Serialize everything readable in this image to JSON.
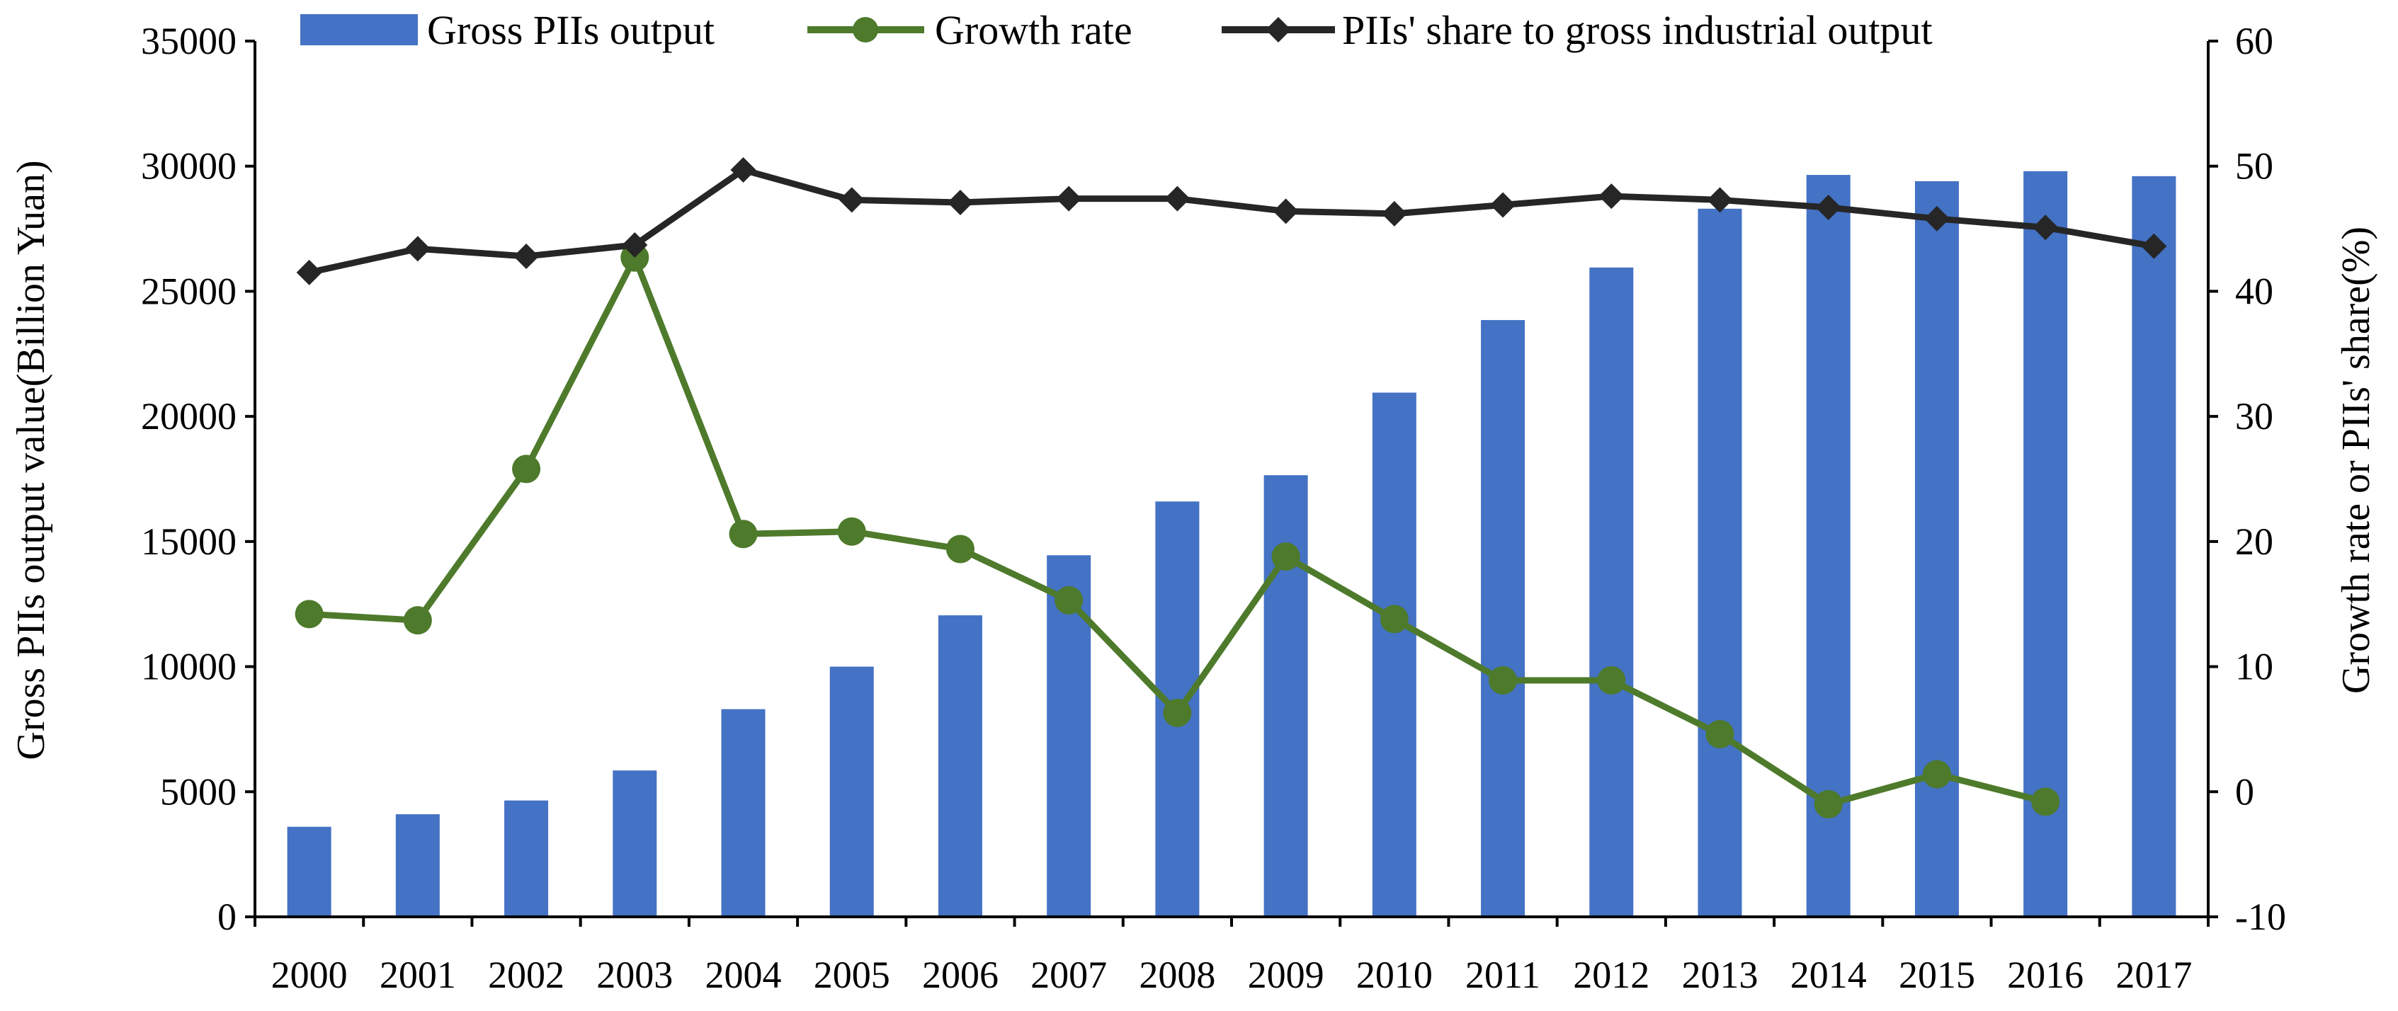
{
  "chart_data": {
    "type": "bar+line",
    "categories": [
      "2000",
      "2001",
      "2002",
      "2003",
      "2004",
      "2005",
      "2006",
      "2007",
      "2008",
      "2009",
      "2010",
      "2011",
      "2012",
      "2013",
      "2014",
      "2015",
      "2016",
      "2017"
    ],
    "left_axis": {
      "label": "Gross PIIs output value(Billion Yuan)",
      "min": 0,
      "max": 35000,
      "step": 5000,
      "ticks": [
        "0",
        "5000",
        "10000",
        "15000",
        "20000",
        "25000",
        "30000",
        "35000"
      ]
    },
    "right_axis": {
      "label": "Growth rate or  PIIs' share(%)",
      "min": -10,
      "max": 60,
      "step": 10,
      "ticks": [
        "-10",
        "0",
        "10",
        "20",
        "30",
        "40",
        "50",
        "60"
      ]
    },
    "series": [
      {
        "name": "Gross PIIs output",
        "kind": "bar",
        "axis": "left",
        "color": "#4472C4",
        "values": [
          3600,
          4100,
          4650,
          5850,
          8300,
          10000,
          12050,
          14450,
          16600,
          17650,
          20950,
          23850,
          25950,
          28300,
          29650,
          29400,
          29800,
          29600
        ]
      },
      {
        "name": "Growth rate",
        "kind": "line",
        "axis": "right",
        "color": "#4E7A2B",
        "marker": "circle",
        "values": [
          14.2,
          13.7,
          25.8,
          42.7,
          20.6,
          20.8,
          19.4,
          15.3,
          6.3,
          18.8,
          13.8,
          8.9,
          8.9,
          4.6,
          -1.0,
          1.4,
          -0.8,
          null
        ]
      },
      {
        "name": "PIIs' share to gross industrial output",
        "kind": "line",
        "axis": "right",
        "color": "#262626",
        "marker": "diamond",
        "values": [
          41.5,
          43.4,
          42.8,
          43.7,
          49.7,
          47.3,
          47.1,
          47.4,
          47.4,
          46.4,
          46.2,
          46.9,
          47.6,
          47.3,
          46.7,
          45.8,
          45.1,
          43.6
        ]
      }
    ],
    "legend": {
      "placement": "top",
      "entries": [
        "Gross PIIs output",
        "Growth rate",
        "PIIs' share to gross industrial output"
      ]
    },
    "grid": false
  }
}
